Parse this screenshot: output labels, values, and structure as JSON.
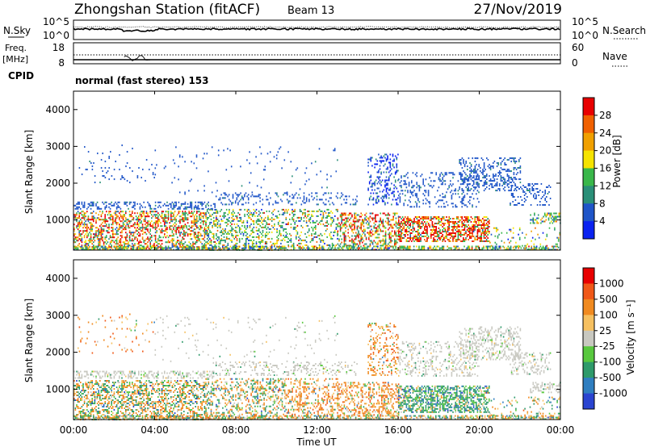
{
  "header": {
    "title": "Zhongshan Station (fitACF)",
    "beam": "Beam 13",
    "date": "27/Nov/2019"
  },
  "nsky_panel": {
    "left_label": "N.Sky",
    "left_ticks": [
      "10^5",
      "10^0"
    ],
    "right_label": "N.Search",
    "right_ticks": [
      "10^5",
      "10^0"
    ]
  },
  "freq_panel": {
    "left_label_line1": "Freq.",
    "left_label_line2": "[MHz]",
    "left_ticks": [
      "18",
      "8"
    ],
    "right_label": "Nave",
    "right_ticks": [
      "60",
      "0"
    ]
  },
  "cpid": {
    "label": "CPID",
    "value": "normal (fast stereo) 153"
  },
  "chart_data": [
    {
      "type": "heatmap",
      "name": "Power",
      "ylabel": "Slant Range [km]",
      "yticks": [
        "4000",
        "3000",
        "2000",
        "1000"
      ],
      "ylim": [
        180,
        4500
      ],
      "colorbar_label": "Power [dB]",
      "colorbar_ticks": [
        "28",
        "24",
        "20",
        "16",
        "12",
        "8",
        "4"
      ],
      "colors": [
        "#0a22f0",
        "#1f55c8",
        "#2a8f78",
        "#39b74a",
        "#f5e300",
        "#f0a000",
        "#f06000",
        "#e80000"
      ]
    },
    {
      "type": "heatmap",
      "name": "Velocity",
      "ylabel": "Slant Range [km]",
      "yticks": [
        "4000",
        "3000",
        "2000",
        "1000"
      ],
      "ylim": [
        180,
        4500
      ],
      "colorbar_label": "Velocity [m s⁻¹]",
      "colorbar_ticks": [
        "1000",
        "500",
        "100",
        "25",
        "-25",
        "-100",
        "-500",
        "-1000"
      ],
      "colors": [
        "#2a44d0",
        "#2f7ec0",
        "#2e9a6a",
        "#58c83e",
        "#c8c8c0",
        "#f6c060",
        "#f08a20",
        "#f05818",
        "#e80000"
      ]
    }
  ],
  "xaxis": {
    "label": "Time UT",
    "ticks": [
      "00:00",
      "04:00",
      "08:00",
      "12:00",
      "16:00",
      "20:00",
      "00:00"
    ]
  }
}
